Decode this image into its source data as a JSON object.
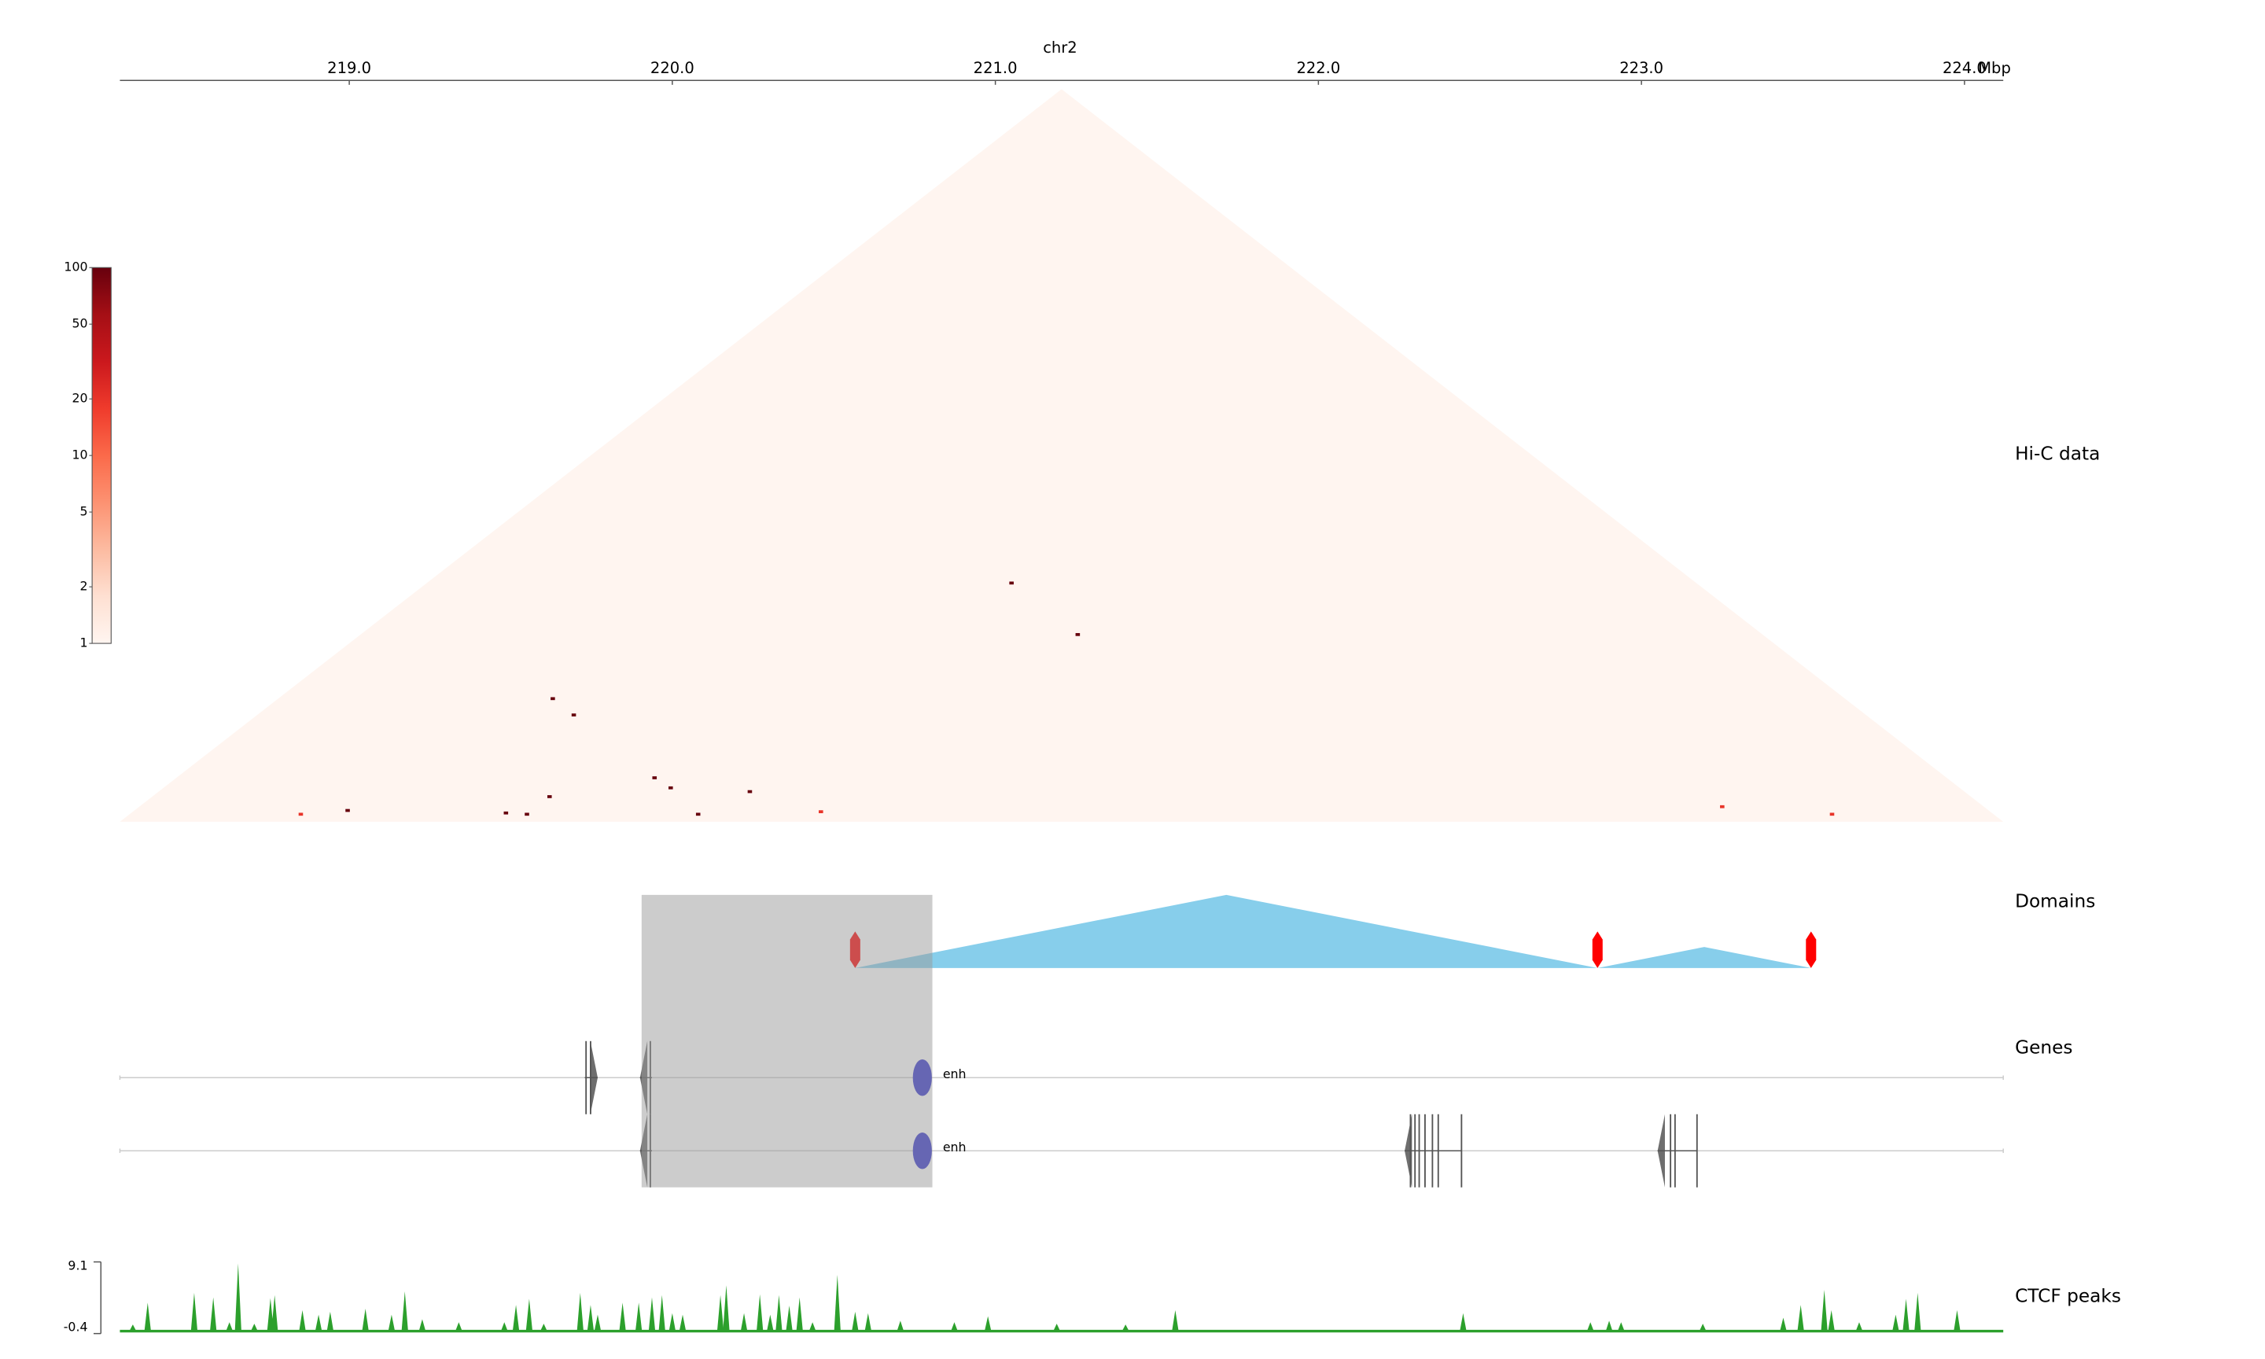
{
  "chart_data": {
    "type": "genome_tracks",
    "chrom": "chr2",
    "x_unit": "Mbp",
    "xlim": [
      218.29,
      224.12
    ],
    "xticks": [
      {
        "value": 219,
        "label": "219.0"
      },
      {
        "value": 220,
        "label": "220.0"
      },
      {
        "value": 221,
        "label": "221.0"
      },
      {
        "value": 222,
        "label": "222.0"
      },
      {
        "value": 223,
        "label": "223.0"
      },
      {
        "value": 224,
        "label": "224.0"
      }
    ],
    "highlight": {
      "start": 219.905,
      "end": 220.805,
      "color": "#999999"
    },
    "tracks": [
      {
        "type": "hic",
        "title": "Hi-C data",
        "clim": [
          1,
          100
        ],
        "log": true,
        "cticks": [
          1,
          2,
          5,
          10,
          20,
          50,
          100
        ],
        "colormap": [
          "#fff5f0",
          "#fee0d2",
          "#fcbba1",
          "#fc9272",
          "#fb6a4a",
          "#ef3b2c",
          "#cb181d",
          "#a50f15",
          "#67000d"
        ],
        "contacts": [
          {
            "start": 220.1,
            "end": 222.0,
            "value": 100
          },
          {
            "start": 220.51,
            "end": 222.0,
            "value": 100
          },
          {
            "start": 219.14,
            "end": 220.12,
            "value": 100
          },
          {
            "start": 219.27,
            "end": 220.12,
            "value": 100
          },
          {
            "start": 219.77,
            "end": 220.12,
            "value": 100
          },
          {
            "start": 219.86,
            "end": 220.13,
            "value": 100
          },
          {
            "start": 220.12,
            "end": 220.36,
            "value": 100
          },
          {
            "start": 219.52,
            "end": 219.72,
            "value": 100
          },
          {
            "start": 220.05,
            "end": 220.11,
            "value": 100
          },
          {
            "start": 218.95,
            "end": 219.04,
            "value": 100
          },
          {
            "start": 219.45,
            "end": 219.52,
            "value": 100
          },
          {
            "start": 219.52,
            "end": 219.58,
            "value": 100
          },
          {
            "start": 223.19,
            "end": 223.31,
            "value": 20
          },
          {
            "start": 223.56,
            "end": 223.62,
            "value": 20
          },
          {
            "start": 220.42,
            "end": 220.5,
            "value": 20
          },
          {
            "start": 218.82,
            "end": 218.88,
            "value": 20
          }
        ]
      },
      {
        "type": "domains",
        "title": "Domains",
        "color": "#87ceeb",
        "boundary_color": "#ff0000",
        "domains": [
          {
            "start": 220.566,
            "end": 222.864
          },
          {
            "start": 222.864,
            "end": 223.525
          }
        ]
      },
      {
        "type": "genes",
        "title": "Genes",
        "color": "#555555",
        "enh_color": "#3333cc",
        "rows": [
          {
            "genes": [
              {
                "start": 219.729,
                "end": 219.769,
                "strand": "+",
                "exons": [
                  219.733,
                  219.747
                ]
              },
              {
                "start": 219.9,
                "end": 219.937,
                "strand": "-",
                "exons": [
                  219.932
                ]
              }
            ],
            "enhancers": [
              {
                "position": 220.774,
                "label": "enh"
              }
            ]
          },
          {
            "genes": [
              {
                "start": 219.9,
                "end": 219.937,
                "strand": "-",
                "exons": [
                  219.932
                ]
              },
              {
                "start": 222.267,
                "end": 222.443,
                "strand": "-",
                "exons": [
                  222.285,
                  222.299,
                  222.312,
                  222.33,
                  222.353,
                  222.371,
                  222.443
                ]
              },
              {
                "start": 223.05,
                "end": 223.172,
                "strand": "-",
                "exons": [
                  223.09,
                  223.104,
                  223.172
                ]
              }
            ],
            "enhancers": [
              {
                "position": 220.774,
                "label": "enh"
              }
            ]
          }
        ]
      },
      {
        "type": "bigwig",
        "title": "CTCF peaks",
        "color": "#2ca02c",
        "ylim": [
          -0.4,
          9.1
        ],
        "yticks": [
          -0.4,
          9.1
        ],
        "x": [
          218.33,
          218.376,
          218.52,
          218.579,
          218.629,
          218.656,
          218.706,
          218.756,
          218.769,
          218.855,
          218.905,
          218.941,
          219.05,
          219.131,
          219.172,
          219.226,
          219.339,
          219.48,
          219.516,
          219.557,
          219.602,
          219.715,
          219.747,
          219.769,
          219.846,
          219.896,
          219.937,
          219.968,
          220.0,
          220.032,
          220.149,
          220.167,
          220.222,
          220.271,
          220.303,
          220.33,
          220.362,
          220.394,
          220.434,
          220.511,
          220.566,
          220.606,
          220.706,
          220.873,
          220.977,
          221.19,
          221.403,
          221.557,
          222.448,
          222.842,
          222.9,
          222.937,
          223.19,
          223.439,
          223.493,
          223.566,
          223.588,
          223.674,
          223.787,
          223.819,
          223.855,
          223.977
        ],
        "values": [
          0.8,
          3.7,
          5.0,
          4.4,
          1.1,
          8.9,
          0.9,
          4.3,
          4.7,
          2.7,
          2.1,
          2.5,
          2.9,
          2.1,
          5.2,
          1.5,
          1.1,
          1.1,
          3.4,
          4.2,
          0.9,
          5.0,
          3.4,
          2.1,
          3.7,
          3.7,
          4.4,
          4.7,
          2.3,
          2.1,
          4.7,
          6.0,
          2.3,
          4.8,
          2.1,
          4.7,
          3.3,
          4.4,
          1.1,
          7.4,
          2.5,
          2.3,
          1.3,
          1.1,
          1.9,
          0.9,
          0.8,
          2.7,
          2.3,
          1.1,
          1.3,
          1.1,
          0.9,
          1.7,
          3.4,
          5.4,
          2.7,
          1.1,
          2.1,
          4.2,
          5.0,
          2.7
        ]
      }
    ]
  }
}
